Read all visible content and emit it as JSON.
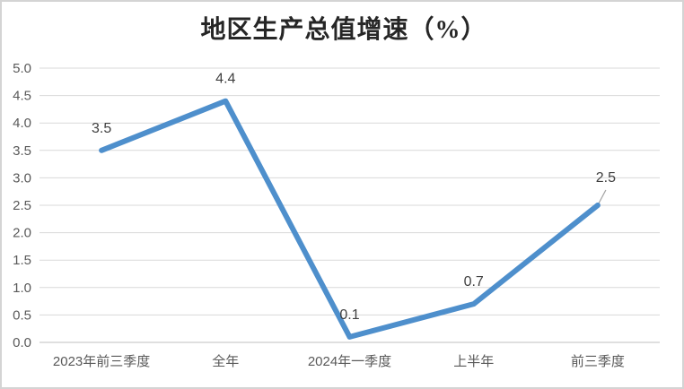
{
  "chart_data": {
    "type": "line",
    "title": "地区生产总值增速（%）",
    "categories": [
      "2023年前三季度",
      "全年",
      "2024年一季度",
      "上半年",
      "前三季度"
    ],
    "values": [
      3.5,
      4.4,
      0.1,
      0.7,
      2.5
    ],
    "data_labels": [
      "3.5",
      "4.4",
      "0.1",
      "0.7",
      "2.5"
    ],
    "series_name": "地区生产总值增速",
    "ylim": [
      0.0,
      5.0
    ],
    "ytick_step": 0.5,
    "yticks": [
      "0.0",
      "0.5",
      "1.0",
      "1.5",
      "2.0",
      "2.5",
      "3.0",
      "3.5",
      "4.0",
      "4.5",
      "5.0"
    ],
    "grid": true,
    "legend": "none",
    "colors": {
      "line": "#4E8FCC",
      "gridline": "#D9D9D9",
      "axis_line": "#BFBFBF",
      "tick_label": "#595959",
      "data_label": "#404040",
      "title": "#262626",
      "leader_line": "#A6A6A6",
      "frame_border": "#D4D4D4",
      "background": "#FFFFFF"
    }
  }
}
